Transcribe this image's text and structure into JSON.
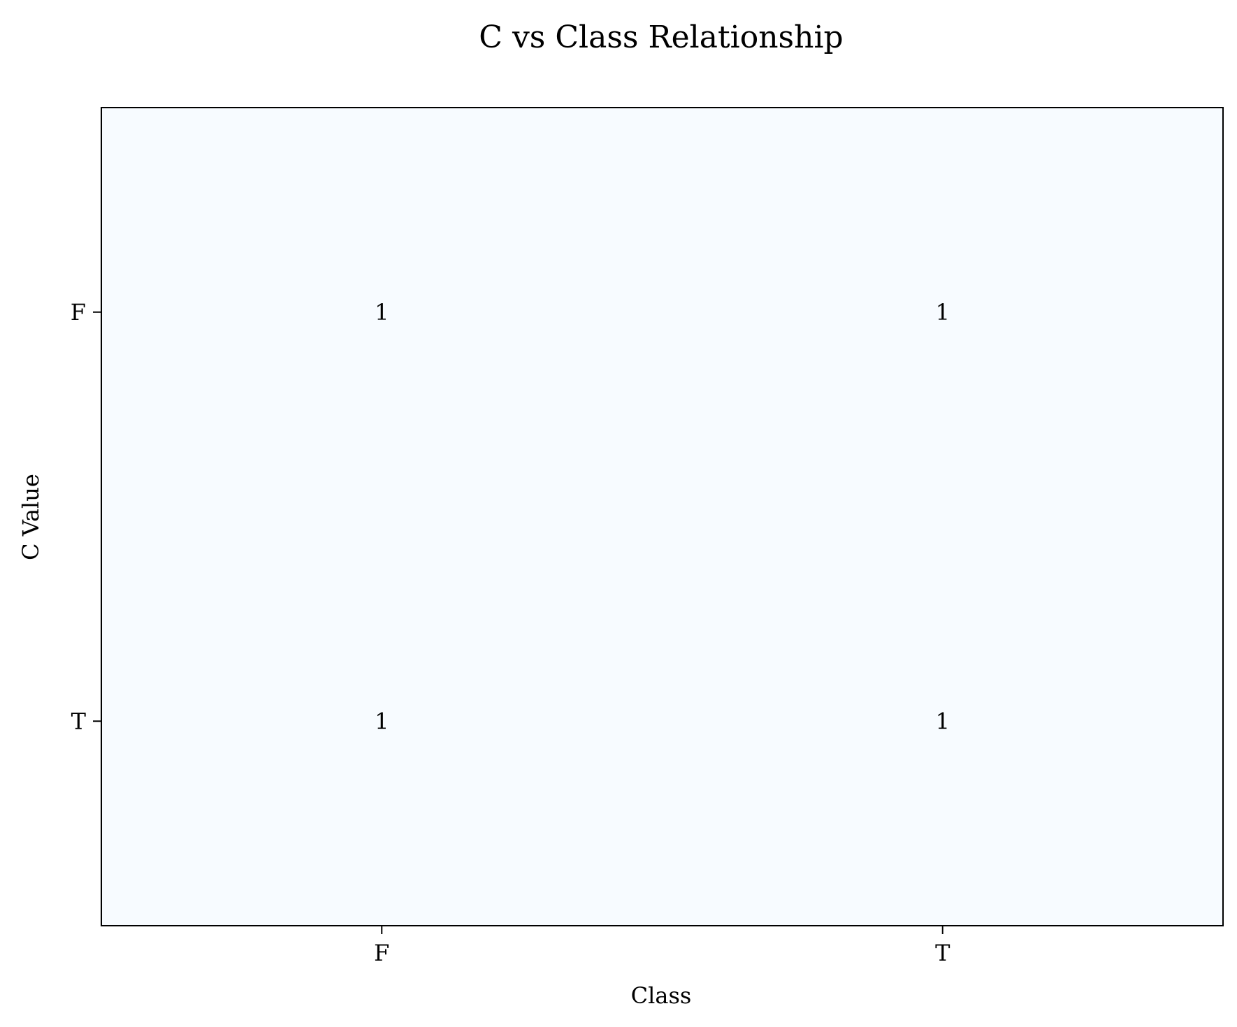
{
  "chart_data": {
    "type": "heatmap",
    "title": "C vs Class Relationship",
    "xlabel": "Class",
    "ylabel": "C Value",
    "x_categories": [
      "F",
      "T"
    ],
    "y_categories": [
      "F",
      "T"
    ],
    "values": [
      [
        1,
        1
      ],
      [
        1,
        1
      ]
    ],
    "cell_color": "#f7fbff",
    "grid": false,
    "legend": "none"
  }
}
